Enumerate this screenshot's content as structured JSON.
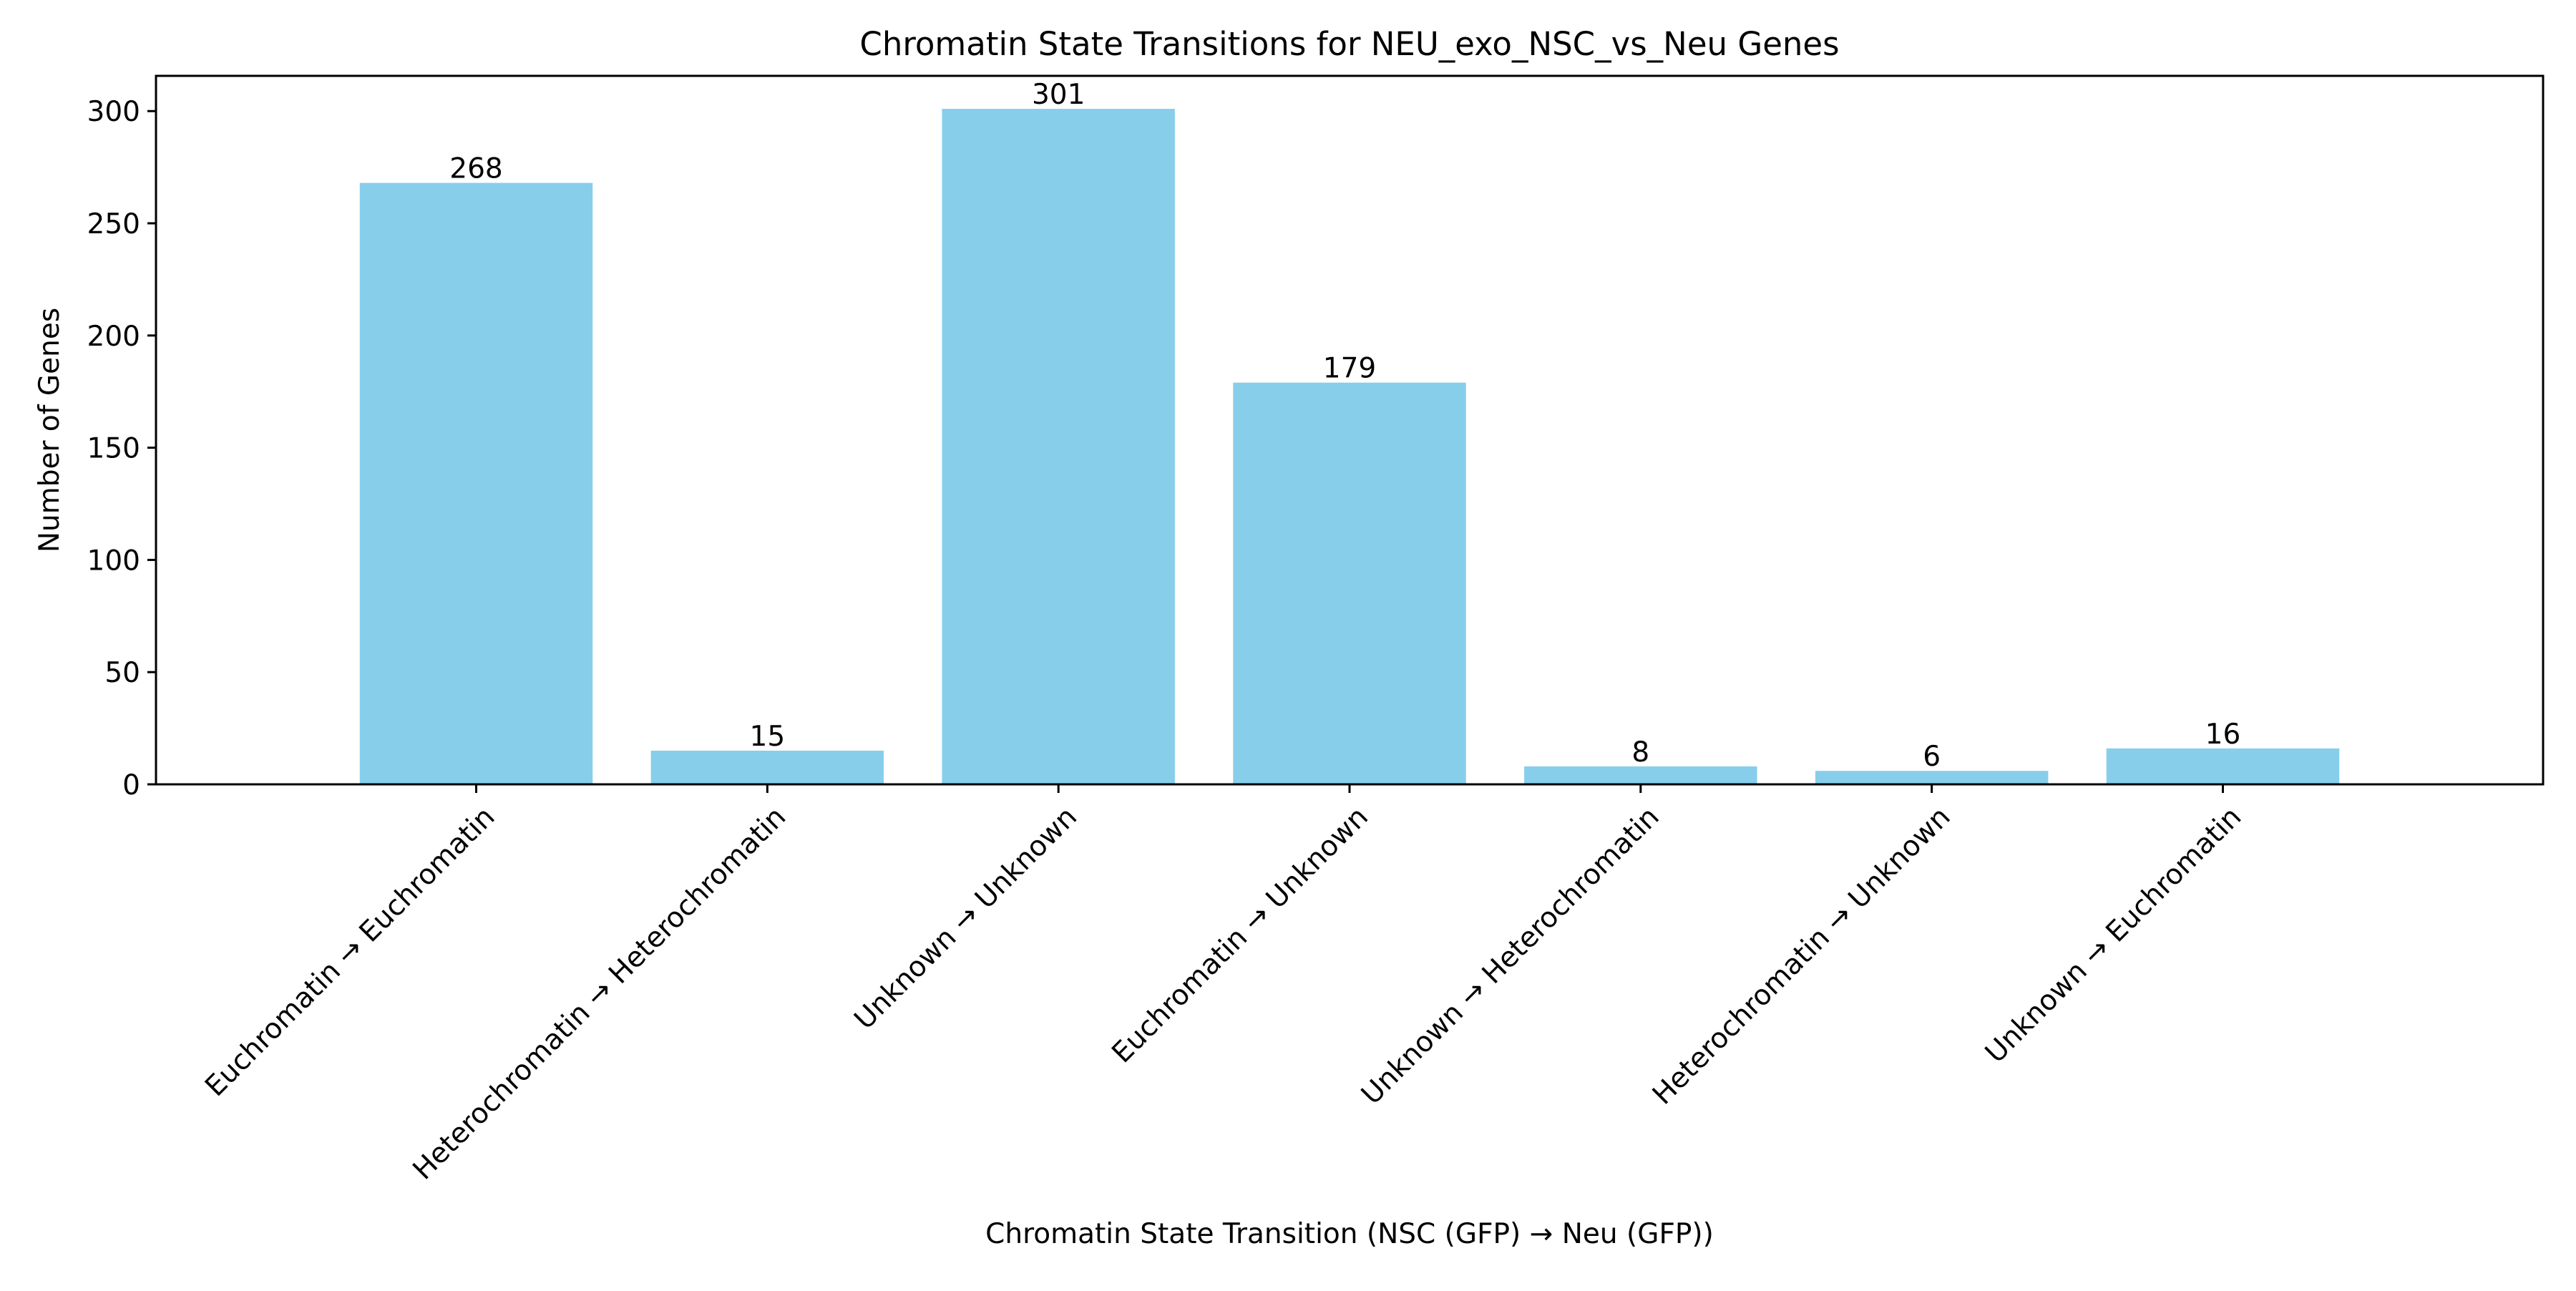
{
  "chart_data": {
    "type": "bar",
    "title": "Chromatin State Transitions for NEU_exo_NSC_vs_Neu Genes",
    "xlabel": "Chromatin State Transition (NSC (GFP) → Neu (GFP))",
    "ylabel": "Number of Genes",
    "categories": [
      "Euchromatin → Euchromatin",
      "Heterochromatin → Heterochromatin",
      "Unknown → Unknown",
      "Euchromatin → Unknown",
      "Unknown → Heterochromatin",
      "Heterochromatin → Unknown",
      "Unknown → Euchromatin"
    ],
    "values": [
      268,
      15,
      301,
      179,
      8,
      6,
      16
    ],
    "ylim": [
      0,
      315.7
    ],
    "yticks": [
      0,
      50,
      100,
      150,
      200,
      250,
      300
    ],
    "bar_color": "#87CEEB",
    "grid": false,
    "legend": "none"
  }
}
